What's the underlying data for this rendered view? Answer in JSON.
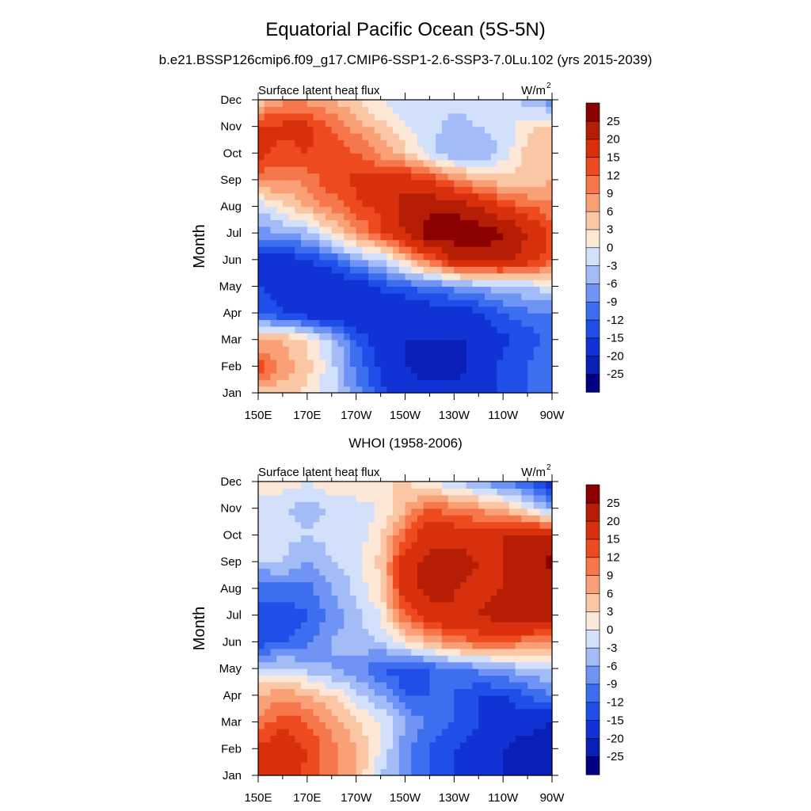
{
  "figure": {
    "title": "Equatorial Pacific Ocean (5S-5N)",
    "subtitle": "b.e21.BSSP126cmip6.f09_g17.CMIP6-SSP1-2.6-SSP3-7.0Lu.102 (yrs 2015-2039)"
  },
  "colorbar": {
    "labels": [
      "25",
      "20",
      "15",
      "12",
      "9",
      "6",
      "3",
      "0",
      "-3",
      "-6",
      "-9",
      "-12",
      "-15",
      "-20",
      "-25"
    ],
    "colors": [
      "#000080",
      "#0a1fb5",
      "#1133d6",
      "#1f4fe8",
      "#3d6ef0",
      "#6f94f5",
      "#a3bcf8",
      "#d3e0fb",
      "#fde7d6",
      "#fbc6a4",
      "#f9a077",
      "#f6774b",
      "#ee4a1f",
      "#d8300c",
      "#b51d05",
      "#8b0000"
    ]
  },
  "chart_data": [
    {
      "type": "heatmap",
      "panel_title": "",
      "left_label": "Surface latent heat flux",
      "right_label": "W/m",
      "right_label_sup": "2",
      "ylabel": "Month",
      "x_ticks": [
        "150E",
        "170E",
        "170W",
        "150W",
        "130W",
        "110W",
        "90W"
      ],
      "y_ticks": [
        "Jan",
        "Feb",
        "Mar",
        "Apr",
        "May",
        "Jun",
        "Jul",
        "Aug",
        "Sep",
        "Oct",
        "Nov",
        "Dec"
      ],
      "x": [
        150,
        160,
        170,
        180,
        190,
        200,
        210,
        220,
        230,
        240,
        250,
        260,
        270
      ],
      "y": [
        1,
        2,
        3,
        4,
        5,
        6,
        7,
        8,
        9,
        10,
        11,
        12
      ],
      "values": [
        [
          5,
          4,
          2,
          -2,
          -8,
          -14,
          -18,
          -18,
          -18,
          -18,
          -14,
          -12,
          -9
        ],
        [
          14,
          8,
          4,
          -2,
          -10,
          -16,
          -20,
          -22,
          -22,
          -18,
          -14,
          -12,
          -9
        ],
        [
          6,
          6,
          3,
          -3,
          -12,
          -18,
          -20,
          -20,
          -20,
          -20,
          -16,
          -14,
          -10
        ],
        [
          -12,
          -15,
          -18,
          -20,
          -20,
          -20,
          -20,
          -18,
          -18,
          -16,
          -12,
          -10,
          -9
        ],
        [
          -15,
          -18,
          -20,
          -20,
          -18,
          -14,
          -12,
          -10,
          -8,
          -6,
          -4,
          -3,
          -1
        ],
        [
          -16,
          -18,
          -15,
          -12,
          -6,
          -3,
          4,
          12,
          20,
          22,
          22,
          18,
          12
        ],
        [
          -8,
          -6,
          -4,
          2,
          8,
          14,
          20,
          28,
          28,
          28,
          26,
          20,
          14
        ],
        [
          -2,
          2,
          6,
          10,
          14,
          16,
          22,
          24,
          24,
          20,
          15,
          12,
          10
        ],
        [
          10,
          9,
          10,
          14,
          16,
          18,
          18,
          15,
          10,
          6,
          4,
          4,
          6
        ],
        [
          16,
          14,
          15,
          14,
          12,
          8,
          4,
          -2,
          -6,
          -6,
          -2,
          4,
          6
        ],
        [
          16,
          16,
          16,
          12,
          8,
          4,
          0,
          -2,
          -4,
          -3,
          -2,
          2,
          4
        ],
        [
          4,
          8,
          8,
          6,
          3,
          0,
          -3,
          -3,
          -2,
          -2,
          -2,
          -4,
          -8
        ]
      ],
      "vmin": -25,
      "vmax": 25
    },
    {
      "type": "heatmap",
      "panel_title": "WHOI (1958-2006)",
      "left_label": "Surface latent heat flux",
      "right_label": "W/m",
      "right_label_sup": "2",
      "ylabel": "Month",
      "x_ticks": [
        "150E",
        "170E",
        "170W",
        "150W",
        "130W",
        "110W",
        "90W"
      ],
      "y_ticks": [
        "Jan",
        "Feb",
        "Mar",
        "Apr",
        "May",
        "Jun",
        "Jul",
        "Aug",
        "Sep",
        "Oct",
        "Nov",
        "Dec"
      ],
      "x": [
        150,
        160,
        170,
        180,
        190,
        200,
        210,
        220,
        230,
        240,
        250,
        260,
        270
      ],
      "y": [
        1,
        2,
        3,
        4,
        5,
        6,
        7,
        8,
        9,
        10,
        11,
        12
      ],
      "values": [
        [
          15,
          17,
          14,
          10,
          6,
          -3,
          -8,
          -12,
          -15,
          -18,
          -20,
          -22,
          -25
        ],
        [
          16,
          18,
          15,
          10,
          6,
          0,
          -8,
          -12,
          -15,
          -18,
          -20,
          -22,
          -24
        ],
        [
          10,
          14,
          12,
          8,
          4,
          0,
          -6,
          -10,
          -12,
          -15,
          -18,
          -18,
          -20
        ],
        [
          6,
          8,
          6,
          3,
          -2,
          -6,
          -12,
          -12,
          -12,
          -15,
          -15,
          -12,
          -9
        ],
        [
          -2,
          -2,
          -4,
          -6,
          -8,
          -12,
          -14,
          -12,
          -10,
          -8,
          -6,
          -4,
          -2
        ],
        [
          -14,
          -12,
          -10,
          -6,
          -4,
          -3,
          2,
          6,
          10,
          12,
          12,
          10,
          8
        ],
        [
          -12,
          -15,
          -12,
          -8,
          -4,
          0,
          12,
          18,
          20,
          20,
          22,
          24,
          22
        ],
        [
          -12,
          -10,
          -10,
          -6,
          -2,
          3,
          18,
          22,
          20,
          18,
          20,
          22,
          20
        ],
        [
          -3,
          -3,
          -6,
          -3,
          -2,
          4,
          18,
          22,
          22,
          20,
          20,
          24,
          26
        ],
        [
          -3,
          -2,
          -3,
          -2,
          -2,
          3,
          12,
          18,
          18,
          18,
          20,
          22,
          20
        ],
        [
          -2,
          -3,
          -4,
          -3,
          -2,
          0,
          6,
          12,
          10,
          8,
          6,
          0,
          -6
        ],
        [
          3,
          2,
          0,
          3,
          3,
          3,
          3,
          0,
          -3,
          -6,
          -9,
          -12,
          -18
        ]
      ],
      "vmin": -25,
      "vmax": 25
    }
  ]
}
